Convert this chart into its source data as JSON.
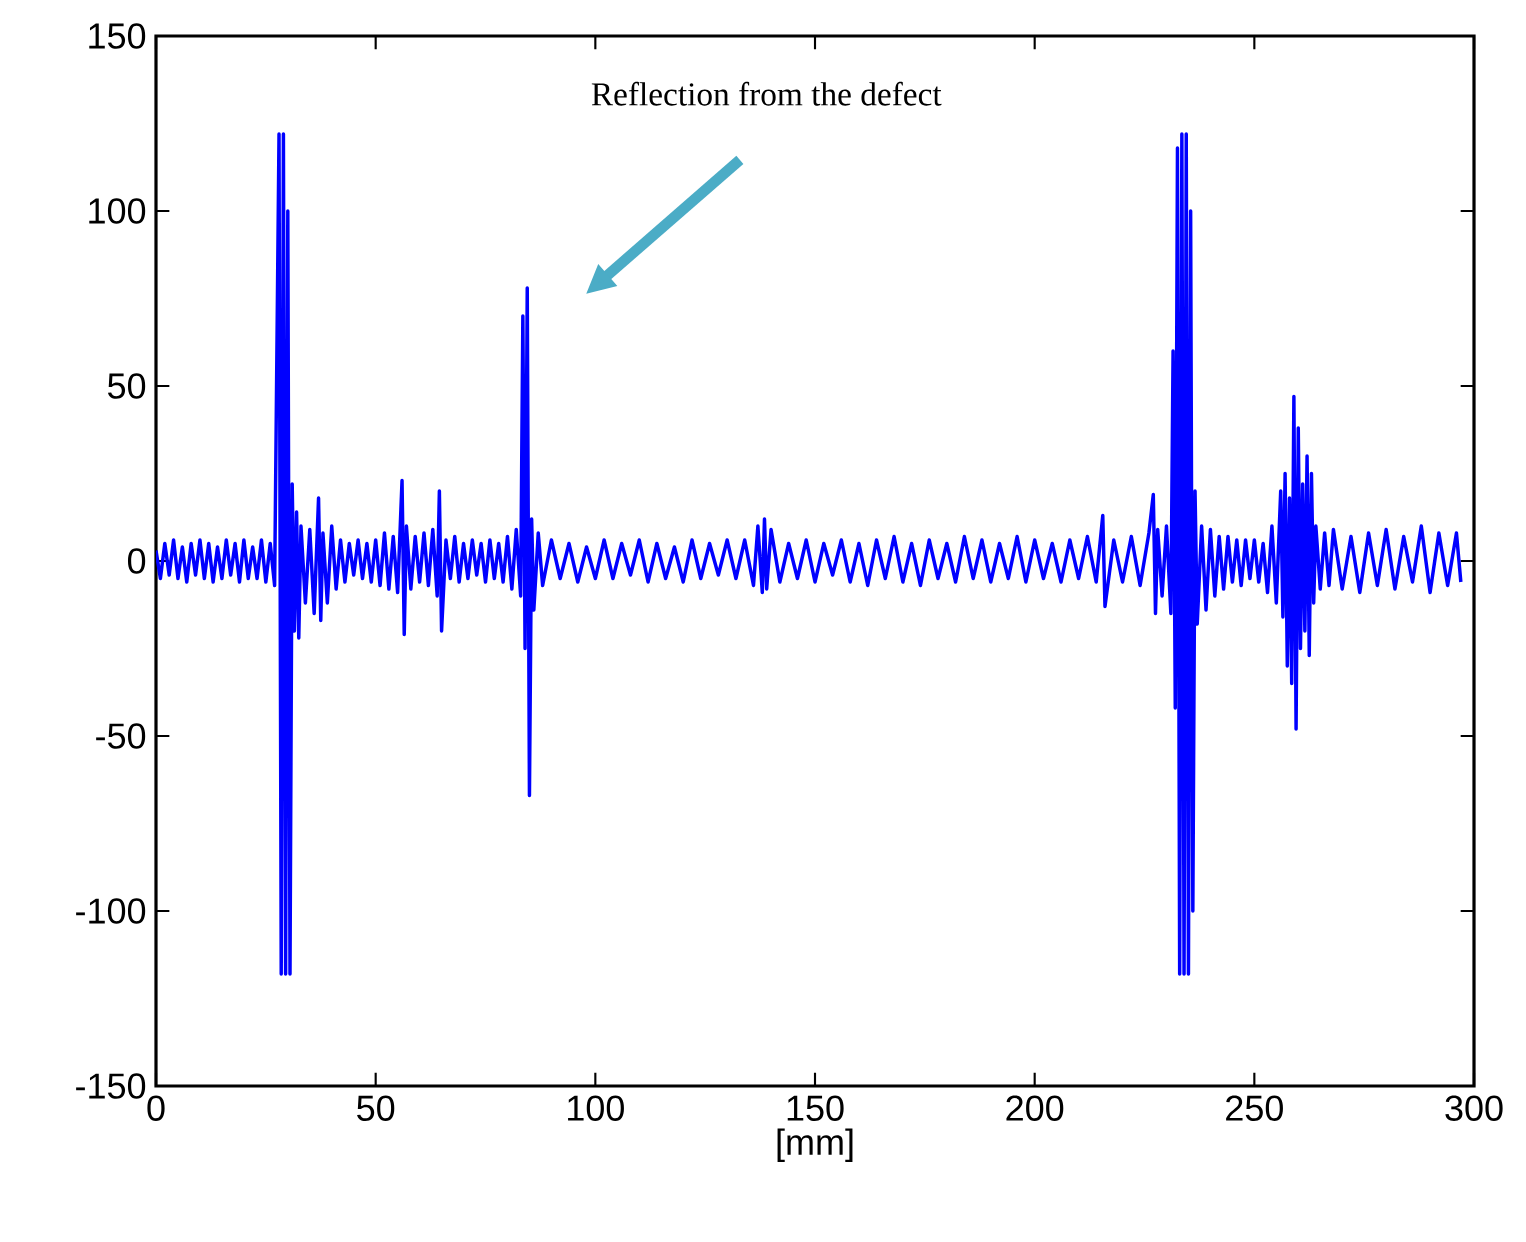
{
  "chart_data": {
    "type": "line",
    "xlabel": "[mm]",
    "annotations": [
      "Reflection from the defect"
    ],
    "xlim": [
      0,
      300
    ],
    "ylim": [
      -150,
      150
    ],
    "xticks": [
      0,
      50,
      100,
      150,
      200,
      250,
      300
    ],
    "yticks": [
      -150,
      -100,
      -50,
      0,
      50,
      100,
      150
    ],
    "series": [
      {
        "color": "#0000ff",
        "x": [
          0,
          1,
          2,
          3,
          4,
          5,
          6,
          7,
          8,
          9,
          10,
          11,
          12,
          13,
          14,
          15,
          16,
          17,
          18,
          19,
          20,
          21,
          22,
          23,
          24,
          25,
          26,
          27,
          28,
          28.5,
          29,
          29.5,
          30,
          30.5,
          31,
          31.5,
          32,
          32.5,
          33,
          34,
          35,
          36,
          37,
          37.5,
          38,
          39,
          40,
          41,
          42,
          43,
          44,
          45,
          46,
          47,
          48,
          49,
          50,
          51,
          52,
          53,
          54,
          55,
          56,
          56.5,
          57,
          58,
          59,
          60,
          61,
          62,
          63,
          64,
          64.5,
          65,
          66,
          67,
          68,
          69,
          70,
          71,
          72,
          73,
          74,
          75,
          76,
          77,
          78,
          79,
          80,
          81,
          82,
          83,
          83.5,
          84,
          84.5,
          85,
          85.5,
          86,
          87,
          88,
          90,
          92,
          94,
          96,
          98,
          100,
          102,
          104,
          106,
          108,
          110,
          112,
          114,
          116,
          118,
          120,
          122,
          124,
          126,
          128,
          130,
          132,
          134,
          136,
          137,
          138,
          138.5,
          139,
          140,
          142,
          144,
          146,
          148,
          150,
          152,
          154,
          156,
          158,
          160,
          162,
          164,
          166,
          168,
          170,
          172,
          174,
          176,
          178,
          180,
          182,
          184,
          186,
          188,
          190,
          192,
          194,
          196,
          198,
          200,
          202,
          204,
          206,
          208,
          210,
          212,
          214,
          215.5,
          216,
          218,
          220,
          222,
          224,
          226,
          227,
          227.5,
          228,
          229,
          230,
          231,
          231.5,
          232,
          232.5,
          233,
          233.5,
          234,
          234.5,
          235,
          235.5,
          236,
          236.5,
          237,
          238,
          239,
          240,
          241,
          242,
          243,
          244,
          245,
          246,
          247,
          248,
          249,
          250,
          251,
          252,
          253,
          254,
          255,
          256,
          256.5,
          257,
          257.5,
          258,
          258.5,
          259,
          259.5,
          260,
          260.5,
          261,
          261.5,
          262,
          262.5,
          263,
          263.5,
          264,
          265,
          266,
          267,
          268,
          270,
          272,
          274,
          276,
          278,
          280,
          282,
          284,
          286,
          288,
          290,
          292,
          294,
          296,
          297
        ],
        "values": [
          3,
          -5,
          5,
          -4,
          6,
          -5,
          4,
          -6,
          5,
          -4,
          6,
          -5,
          5,
          -6,
          4,
          -5,
          6,
          -4,
          5,
          -6,
          6,
          -5,
          4,
          -5,
          6,
          -6,
          5,
          -7,
          122,
          -118,
          122,
          -118,
          100,
          -118,
          22,
          -20,
          14,
          -22,
          10,
          -12,
          9,
          -15,
          18,
          -17,
          8,
          -12,
          10,
          -8,
          6,
          -6,
          5,
          -4,
          6,
          -5,
          5,
          -6,
          6,
          -7,
          8,
          -8,
          7,
          -9,
          23,
          -21,
          10,
          -8,
          7,
          -6,
          8,
          -7,
          9,
          -10,
          20,
          -20,
          6,
          -5,
          7,
          -6,
          5,
          -5,
          6,
          -4,
          5,
          -6,
          6,
          -5,
          5,
          -6,
          7,
          -8,
          9,
          -10,
          70,
          -25,
          78,
          -67,
          12,
          -14,
          8,
          -7,
          6,
          -5,
          5,
          -6,
          4,
          -5,
          6,
          -5,
          5,
          -4,
          6,
          -6,
          5,
          -5,
          4,
          -6,
          6,
          -5,
          5,
          -4,
          6,
          -5,
          6,
          -7,
          10,
          -9,
          12,
          -8,
          9,
          -6,
          5,
          -5,
          6,
          -6,
          5,
          -4,
          6,
          -6,
          5,
          -7,
          6,
          -5,
          7,
          -6,
          5,
          -7,
          6,
          -5,
          5,
          -6,
          7,
          -5,
          6,
          -6,
          5,
          -5,
          7,
          -6,
          6,
          -5,
          5,
          -6,
          6,
          -5,
          7,
          -6,
          13,
          -13,
          6,
          -6,
          7,
          -7,
          8,
          19,
          -15,
          9,
          -10,
          10,
          -15,
          60,
          -42,
          118,
          -118,
          122,
          -118,
          122,
          -118,
          100,
          -100,
          20,
          -18,
          10,
          -14,
          9,
          -10,
          7,
          -8,
          7,
          -6,
          6,
          -7,
          6,
          -5,
          6,
          -6,
          5,
          -9,
          10,
          -12,
          20,
          -16,
          25,
          -30,
          18,
          -35,
          47,
          -48,
          38,
          -25,
          22,
          -20,
          30,
          -27,
          25,
          -12,
          10,
          -8,
          8,
          -7,
          9,
          -8,
          7,
          -9,
          8,
          -7,
          9,
          -8,
          7,
          -6,
          10,
          -9,
          8,
          -7,
          8,
          -6
        ]
      }
    ]
  }
}
